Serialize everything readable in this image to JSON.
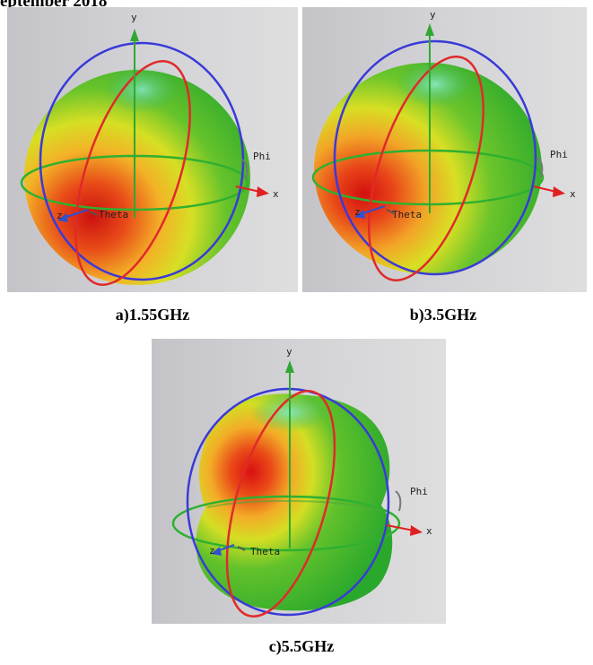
{
  "header": {
    "text": "eptember 2018"
  },
  "panels": [
    {
      "caption": "a)1.55GHz",
      "axis_labels": {
        "y": "y",
        "x": "x",
        "z": "z",
        "theta": "Theta",
        "phi": "Phi"
      }
    },
    {
      "caption": "b)3.5GHz",
      "axis_labels": {
        "y": "y",
        "x": "x",
        "z": "z",
        "theta": "Theta",
        "phi": "Phi"
      }
    },
    {
      "caption": "c)5.5GHz",
      "axis_labels": {
        "y": "y",
        "x": "x",
        "z": "z",
        "theta": "Theta",
        "phi": "Phi"
      }
    }
  ],
  "colors": {
    "axis_y": "#2fa832",
    "axis_x": "#e02020",
    "axis_z": "#3050d0",
    "ring_blue": "#3a3ad8",
    "ring_red": "#e02a2a",
    "ring_green": "#30b030",
    "pattern_high": "#d81818",
    "pattern_mid": "#f0e020",
    "pattern_low": "#30b830"
  }
}
